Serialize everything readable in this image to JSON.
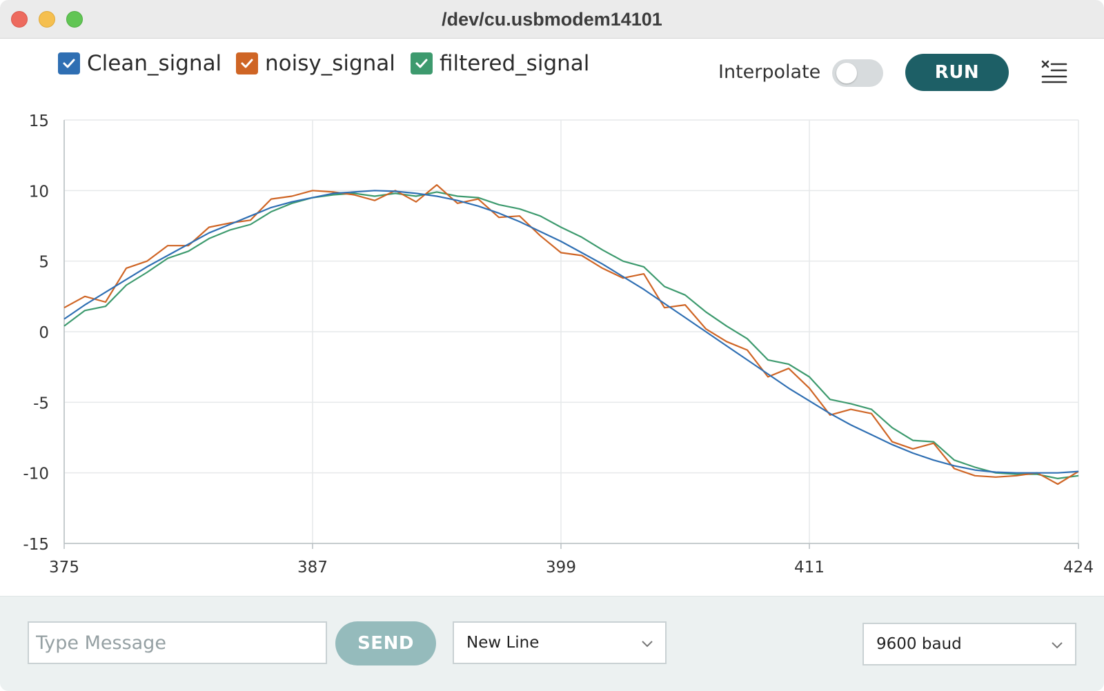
{
  "window": {
    "title": "/dev/cu.usbmodem14101"
  },
  "toolbar": {
    "interpolate_label": "Interpolate",
    "interpolate_on": false,
    "run_label": "RUN"
  },
  "colors": {
    "clean": "#2f6fb3",
    "noisy": "#cf6525",
    "filtered": "#3d9a6e",
    "run_button": "#1d5f66",
    "send_button": "#95bbbc"
  },
  "bottom": {
    "message_placeholder": "Type Message",
    "send_label": "SEND",
    "line_ending": "New Line",
    "baud": "9600 baud"
  },
  "icons": {
    "clear": "clear-list-icon",
    "checkbox": "check-icon",
    "chevron": "chevron-down-icon"
  },
  "chart_data": {
    "type": "line",
    "xlim": [
      375,
      424
    ],
    "ylim": [
      -15,
      15
    ],
    "x_ticks": [
      375,
      387,
      399,
      411,
      424
    ],
    "y_ticks": [
      15,
      10,
      5,
      0,
      -5,
      -10,
      -15
    ],
    "grid": true,
    "legend_position": "top-left",
    "x": [
      375,
      376,
      377,
      378,
      379,
      380,
      381,
      382,
      383,
      384,
      385,
      386,
      387,
      388,
      389,
      390,
      391,
      392,
      393,
      394,
      395,
      396,
      397,
      398,
      399,
      400,
      401,
      402,
      403,
      404,
      405,
      406,
      407,
      408,
      409,
      410,
      411,
      412,
      413,
      414,
      415,
      416,
      417,
      418,
      419,
      420,
      421,
      422,
      423,
      424
    ],
    "series": [
      {
        "name": "Clean_signal",
        "color": "#2f6fb3",
        "checked": true,
        "values": [
          0.9,
          1.9,
          2.8,
          3.7,
          4.6,
          5.4,
          6.2,
          7.0,
          7.6,
          8.2,
          8.8,
          9.2,
          9.5,
          9.8,
          9.9,
          10.0,
          9.95,
          9.8,
          9.6,
          9.3,
          8.9,
          8.4,
          7.8,
          7.1,
          6.4,
          5.6,
          4.8,
          3.9,
          3.0,
          2.0,
          1.0,
          0.0,
          -1.0,
          -2.0,
          -3.0,
          -4.0,
          -4.9,
          -5.8,
          -6.6,
          -7.3,
          -8.0,
          -8.6,
          -9.1,
          -9.5,
          -9.8,
          -9.95,
          -10.0,
          -10.0,
          -10.0,
          -9.9
        ]
      },
      {
        "name": "noisy_signal",
        "color": "#cf6525",
        "checked": true,
        "values": [
          1.7,
          2.5,
          2.1,
          4.5,
          5.0,
          6.1,
          6.1,
          7.4,
          7.7,
          7.9,
          9.4,
          9.6,
          10.0,
          9.9,
          9.7,
          9.3,
          10.0,
          9.2,
          10.4,
          9.1,
          9.4,
          8.1,
          8.2,
          6.8,
          5.6,
          5.4,
          4.5,
          3.8,
          4.1,
          1.7,
          1.9,
          0.2,
          -0.7,
          -1.3,
          -3.2,
          -2.6,
          -4.0,
          -5.9,
          -5.5,
          -5.8,
          -7.8,
          -8.3,
          -7.9,
          -9.7,
          -10.2,
          -10.3,
          -10.2,
          -10.0,
          -10.8,
          -9.9
        ]
      },
      {
        "name": "filtered_signal",
        "color": "#3d9a6e",
        "checked": true,
        "values": [
          0.4,
          1.5,
          1.8,
          3.3,
          4.2,
          5.2,
          5.7,
          6.6,
          7.2,
          7.6,
          8.5,
          9.1,
          9.5,
          9.7,
          9.8,
          9.6,
          9.8,
          9.6,
          9.9,
          9.6,
          9.5,
          9.0,
          8.7,
          8.2,
          7.4,
          6.7,
          5.8,
          5.0,
          4.6,
          3.2,
          2.6,
          1.4,
          0.4,
          -0.5,
          -2.0,
          -2.3,
          -3.2,
          -4.8,
          -5.1,
          -5.5,
          -6.8,
          -7.7,
          -7.8,
          -9.1,
          -9.6,
          -10.0,
          -10.1,
          -10.1,
          -10.4,
          -10.2
        ]
      }
    ]
  }
}
